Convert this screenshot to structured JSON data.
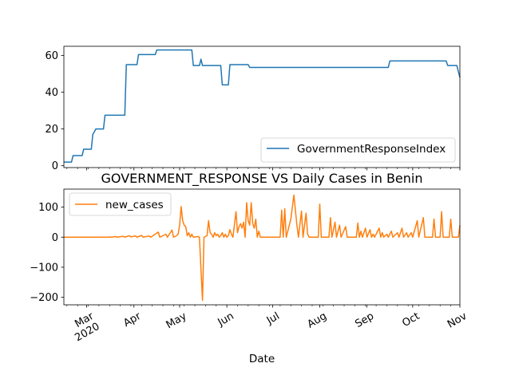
{
  "chart_data": [
    {
      "type": "line",
      "title": "",
      "xlabel": "",
      "ylabel": "",
      "ylim": [
        -1,
        65
      ],
      "yticks": [
        0,
        20,
        40,
        60
      ],
      "grid": false,
      "legend_placement": "lower right",
      "series": [
        {
          "name": "GovernmentResponseIndex",
          "color": "#1f77b4",
          "points": [
            [
              "2020-02-15",
              2
            ],
            [
              "2020-02-20",
              2
            ],
            [
              "2020-02-21",
              5.5
            ],
            [
              "2020-02-27",
              5.5
            ],
            [
              "2020-02-28",
              9
            ],
            [
              "2020-03-04",
              9
            ],
            [
              "2020-03-05",
              17
            ],
            [
              "2020-03-06",
              18.5
            ],
            [
              "2020-03-07",
              20
            ],
            [
              "2020-03-12",
              20
            ],
            [
              "2020-03-13",
              27.5
            ],
            [
              "2020-03-26",
              27.5
            ],
            [
              "2020-03-27",
              55
            ],
            [
              "2020-04-03",
              55
            ],
            [
              "2020-04-04",
              60.5
            ],
            [
              "2020-04-15",
              60.5
            ],
            [
              "2020-04-16",
              63
            ],
            [
              "2020-05-09",
              63
            ],
            [
              "2020-05-10",
              54.5
            ],
            [
              "2020-05-14",
              54.5
            ],
            [
              "2020-05-15",
              58
            ],
            [
              "2020-05-16",
              54.5
            ],
            [
              "2020-05-28",
              54.5
            ],
            [
              "2020-05-29",
              44
            ],
            [
              "2020-06-02",
              44
            ],
            [
              "2020-06-03",
              55
            ],
            [
              "2020-06-15",
              55
            ],
            [
              "2020-06-16",
              53.5
            ],
            [
              "2020-09-15",
              53.5
            ],
            [
              "2020-09-16",
              57
            ],
            [
              "2020-10-23",
              57
            ],
            [
              "2020-10-24",
              54.5
            ],
            [
              "2020-10-30",
              54.5
            ],
            [
              "2020-11-01",
              48
            ]
          ]
        }
      ],
      "x_range": [
        "2020-02-15",
        "2020-11-01"
      ]
    },
    {
      "type": "line",
      "title": "GOVERNMENT_RESPONSE VS Daily Cases in Benin",
      "xlabel": "Date",
      "ylabel": "",
      "ylim": [
        -225,
        160
      ],
      "yticks": [
        -200,
        -100,
        0,
        100
      ],
      "grid": false,
      "legend_placement": "upper left",
      "x_tick_labels": [
        "Mar\n2020",
        "Apr",
        "May",
        "Jun",
        "Jul",
        "Aug",
        "Sep",
        "Oct",
        "Nov"
      ],
      "x_tick_dates": [
        "2020-03-01",
        "2020-04-01",
        "2020-05-01",
        "2020-06-01",
        "2020-07-01",
        "2020-08-01",
        "2020-09-01",
        "2020-10-01",
        "2020-11-01"
      ],
      "series": [
        {
          "name": "new_cases",
          "color": "#ff7f0e",
          "points": [
            [
              "2020-02-15",
              0
            ],
            [
              "2020-03-15",
              0
            ],
            [
              "2020-03-16",
              1
            ],
            [
              "2020-03-17",
              0
            ],
            [
              "2020-03-20",
              2
            ],
            [
              "2020-03-21",
              0
            ],
            [
              "2020-03-25",
              3
            ],
            [
              "2020-03-26",
              0
            ],
            [
              "2020-03-29",
              5
            ],
            [
              "2020-03-30",
              1
            ],
            [
              "2020-04-02",
              4
            ],
            [
              "2020-04-03",
              0
            ],
            [
              "2020-04-06",
              6
            ],
            [
              "2020-04-07",
              0
            ],
            [
              "2020-04-11",
              4
            ],
            [
              "2020-04-12",
              0
            ],
            [
              "2020-04-17",
              17
            ],
            [
              "2020-04-18",
              0
            ],
            [
              "2020-04-22",
              10
            ],
            [
              "2020-04-23",
              0
            ],
            [
              "2020-04-26",
              24
            ],
            [
              "2020-04-27",
              0
            ],
            [
              "2020-04-29",
              5
            ],
            [
              "2020-04-30",
              10
            ],
            [
              "2020-05-01",
              40
            ],
            [
              "2020-05-02",
              102
            ],
            [
              "2020-05-03",
              55
            ],
            [
              "2020-05-04",
              40
            ],
            [
              "2020-05-05",
              35
            ],
            [
              "2020-05-06",
              5
            ],
            [
              "2020-05-07",
              15
            ],
            [
              "2020-05-08",
              0
            ],
            [
              "2020-05-09",
              10
            ],
            [
              "2020-05-10",
              0
            ],
            [
              "2020-05-13",
              2
            ],
            [
              "2020-05-14",
              0
            ],
            [
              "2020-05-16",
              -210
            ],
            [
              "2020-05-17",
              0
            ],
            [
              "2020-05-19",
              5
            ],
            [
              "2020-05-20",
              55
            ],
            [
              "2020-05-21",
              15
            ],
            [
              "2020-05-22",
              10
            ],
            [
              "2020-05-23",
              0
            ],
            [
              "2020-05-24",
              15
            ],
            [
              "2020-05-25",
              5
            ],
            [
              "2020-05-26",
              10
            ],
            [
              "2020-05-27",
              0
            ],
            [
              "2020-05-28",
              5
            ],
            [
              "2020-05-29",
              15
            ],
            [
              "2020-05-30",
              0
            ],
            [
              "2020-05-31",
              10
            ],
            [
              "2020-06-01",
              0
            ],
            [
              "2020-06-02",
              5
            ],
            [
              "2020-06-03",
              25
            ],
            [
              "2020-06-04",
              10
            ],
            [
              "2020-06-05",
              0
            ],
            [
              "2020-06-07",
              85
            ],
            [
              "2020-06-08",
              15
            ],
            [
              "2020-06-09",
              35
            ],
            [
              "2020-06-10",
              45
            ],
            [
              "2020-06-11",
              30
            ],
            [
              "2020-06-12",
              50
            ],
            [
              "2020-06-13",
              0
            ],
            [
              "2020-06-14",
              115
            ],
            [
              "2020-06-15",
              55
            ],
            [
              "2020-06-16",
              40
            ],
            [
              "2020-06-17",
              115
            ],
            [
              "2020-06-18",
              45
            ],
            [
              "2020-06-19",
              30
            ],
            [
              "2020-06-20",
              60
            ],
            [
              "2020-06-21",
              0
            ],
            [
              "2020-06-22",
              20
            ],
            [
              "2020-06-23",
              0
            ],
            [
              "2020-07-06",
              0
            ],
            [
              "2020-07-07",
              90
            ],
            [
              "2020-07-08",
              0
            ],
            [
              "2020-07-09",
              95
            ],
            [
              "2020-07-10",
              0
            ],
            [
              "2020-07-13",
              60
            ],
            [
              "2020-07-15",
              140
            ],
            [
              "2020-07-17",
              40
            ],
            [
              "2020-07-18",
              0
            ],
            [
              "2020-07-20",
              87
            ],
            [
              "2020-07-21",
              0
            ],
            [
              "2020-07-23",
              80
            ],
            [
              "2020-07-24",
              10
            ],
            [
              "2020-07-25",
              0
            ],
            [
              "2020-07-31",
              0
            ],
            [
              "2020-08-01",
              110
            ],
            [
              "2020-08-02",
              0
            ],
            [
              "2020-08-07",
              0
            ],
            [
              "2020-08-08",
              65
            ],
            [
              "2020-08-09",
              0
            ],
            [
              "2020-08-11",
              50
            ],
            [
              "2020-08-12",
              0
            ],
            [
              "2020-08-14",
              40
            ],
            [
              "2020-08-15",
              0
            ],
            [
              "2020-08-18",
              35
            ],
            [
              "2020-08-19",
              0
            ],
            [
              "2020-08-25",
              0
            ],
            [
              "2020-08-26",
              47
            ],
            [
              "2020-08-27",
              0
            ],
            [
              "2020-08-28",
              20
            ],
            [
              "2020-08-29",
              0
            ],
            [
              "2020-08-31",
              30
            ],
            [
              "2020-09-01",
              0
            ],
            [
              "2020-09-03",
              25
            ],
            [
              "2020-09-04",
              0
            ],
            [
              "2020-09-05",
              10
            ],
            [
              "2020-09-06",
              0
            ],
            [
              "2020-09-09",
              30
            ],
            [
              "2020-09-10",
              0
            ],
            [
              "2020-09-11",
              15
            ],
            [
              "2020-09-12",
              0
            ],
            [
              "2020-09-14",
              10
            ],
            [
              "2020-09-15",
              0
            ],
            [
              "2020-09-17",
              20
            ],
            [
              "2020-09-18",
              0
            ],
            [
              "2020-09-21",
              15
            ],
            [
              "2020-09-22",
              0
            ],
            [
              "2020-09-24",
              30
            ],
            [
              "2020-09-25",
              0
            ],
            [
              "2020-09-27",
              15
            ],
            [
              "2020-09-28",
              0
            ],
            [
              "2020-09-30",
              15
            ],
            [
              "2020-10-01",
              0
            ],
            [
              "2020-10-04",
              55
            ],
            [
              "2020-10-05",
              0
            ],
            [
              "2020-10-08",
              65
            ],
            [
              "2020-10-09",
              0
            ],
            [
              "2020-10-14",
              0
            ],
            [
              "2020-10-15",
              60
            ],
            [
              "2020-10-16",
              0
            ],
            [
              "2020-10-19",
              0
            ],
            [
              "2020-10-20",
              85
            ],
            [
              "2020-10-21",
              0
            ],
            [
              "2020-10-25",
              0
            ],
            [
              "2020-10-26",
              60
            ],
            [
              "2020-10-27",
              0
            ],
            [
              "2020-10-31",
              0
            ],
            [
              "2020-11-01",
              40
            ]
          ]
        }
      ],
      "x_range": [
        "2020-02-15",
        "2020-11-01"
      ]
    }
  ]
}
